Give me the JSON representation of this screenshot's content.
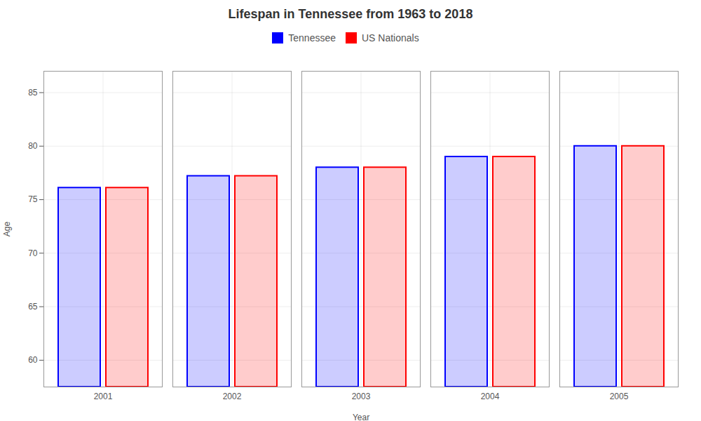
{
  "chart_data": {
    "type": "bar",
    "title": "Lifespan in Tennessee from 1963 to 2018",
    "xlabel": "Year",
    "ylabel": "Age",
    "categories": [
      "2001",
      "2002",
      "2003",
      "2004",
      "2005"
    ],
    "series": [
      {
        "name": "Tennessee",
        "color": "#0000ff",
        "values": [
          76.1,
          77.2,
          78.0,
          79.0,
          80.0
        ]
      },
      {
        "name": "US Nationals",
        "color": "#ff0000",
        "values": [
          76.1,
          77.2,
          78.0,
          79.0,
          80.0
        ]
      }
    ],
    "ylim": [
      57.5,
      87
    ],
    "yticks": [
      60,
      65,
      70,
      75,
      80,
      85
    ],
    "grid": true,
    "legend": "top"
  }
}
